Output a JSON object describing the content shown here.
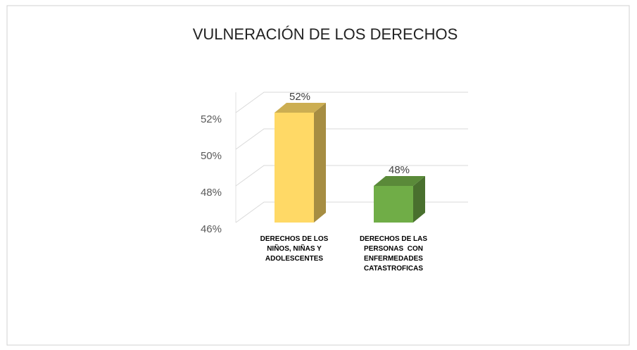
{
  "chart_data": {
    "type": "bar3d",
    "title": "VULNERACIÓN DE LOS DERECHOS",
    "categories": [
      "DERECHOS DE LOS NIÑOS, NIÑAS Y ADOLESCENTES",
      "DERECHOS DE LAS PERSONAS  CON ENFERMEDADES CATASTROFICAS"
    ],
    "values": [
      52,
      48
    ],
    "value_labels": [
      "52%",
      "48%"
    ],
    "colors": [
      "#ffd966",
      "#70ad47"
    ],
    "ylim": [
      46,
      52
    ],
    "yticks": [
      {
        "value": 46,
        "label": "46%"
      },
      {
        "value": 48,
        "label": "48%"
      },
      {
        "value": 50,
        "label": "50%"
      },
      {
        "value": 52,
        "label": "52%"
      }
    ],
    "grid": true
  }
}
